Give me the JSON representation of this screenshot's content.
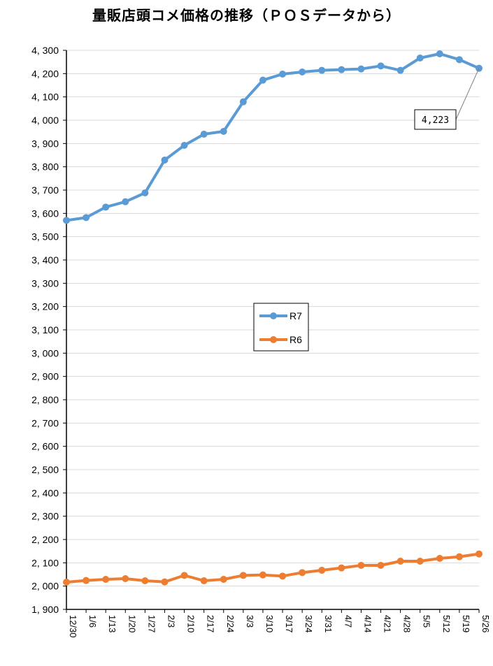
{
  "chart_data": {
    "type": "line",
    "title": "量販店頭コメ価格の推移（ＰＯＳデータから）",
    "xlabel": "",
    "ylabel": "",
    "ylim": [
      1900,
      4300
    ],
    "ytick_step": 100,
    "grid": true,
    "legend_position": "center",
    "categories": [
      "12/30",
      "1/6",
      "1/13",
      "1/20",
      "1/27",
      "2/3",
      "2/10",
      "2/17",
      "2/24",
      "3/3",
      "3/10",
      "3/17",
      "3/24",
      "3/31",
      "4/7",
      "4/14",
      "4/21",
      "4/28",
      "5/5",
      "5/12",
      "5/19",
      "5/26"
    ],
    "series": [
      {
        "name": "R7",
        "color": "#5b9bd5",
        "values": [
          3570,
          3582,
          3627,
          3650,
          3688,
          3829,
          3892,
          3940,
          3952,
          4079,
          4172,
          4198,
          4207,
          4214,
          4217,
          4220,
          4233,
          4214,
          4267,
          4285,
          4260,
          4223
        ]
      },
      {
        "name": "R6",
        "color": "#ed7d31",
        "values": [
          2017,
          2024,
          2029,
          2032,
          2023,
          2018,
          2046,
          2023,
          2029,
          2046,
          2048,
          2043,
          2058,
          2068,
          2078,
          2089,
          2089,
          2107,
          2107,
          2119,
          2126,
          2138
        ]
      }
    ],
    "annotations": [
      {
        "series": "R7",
        "category": "5/26",
        "text": "4,223"
      }
    ]
  }
}
